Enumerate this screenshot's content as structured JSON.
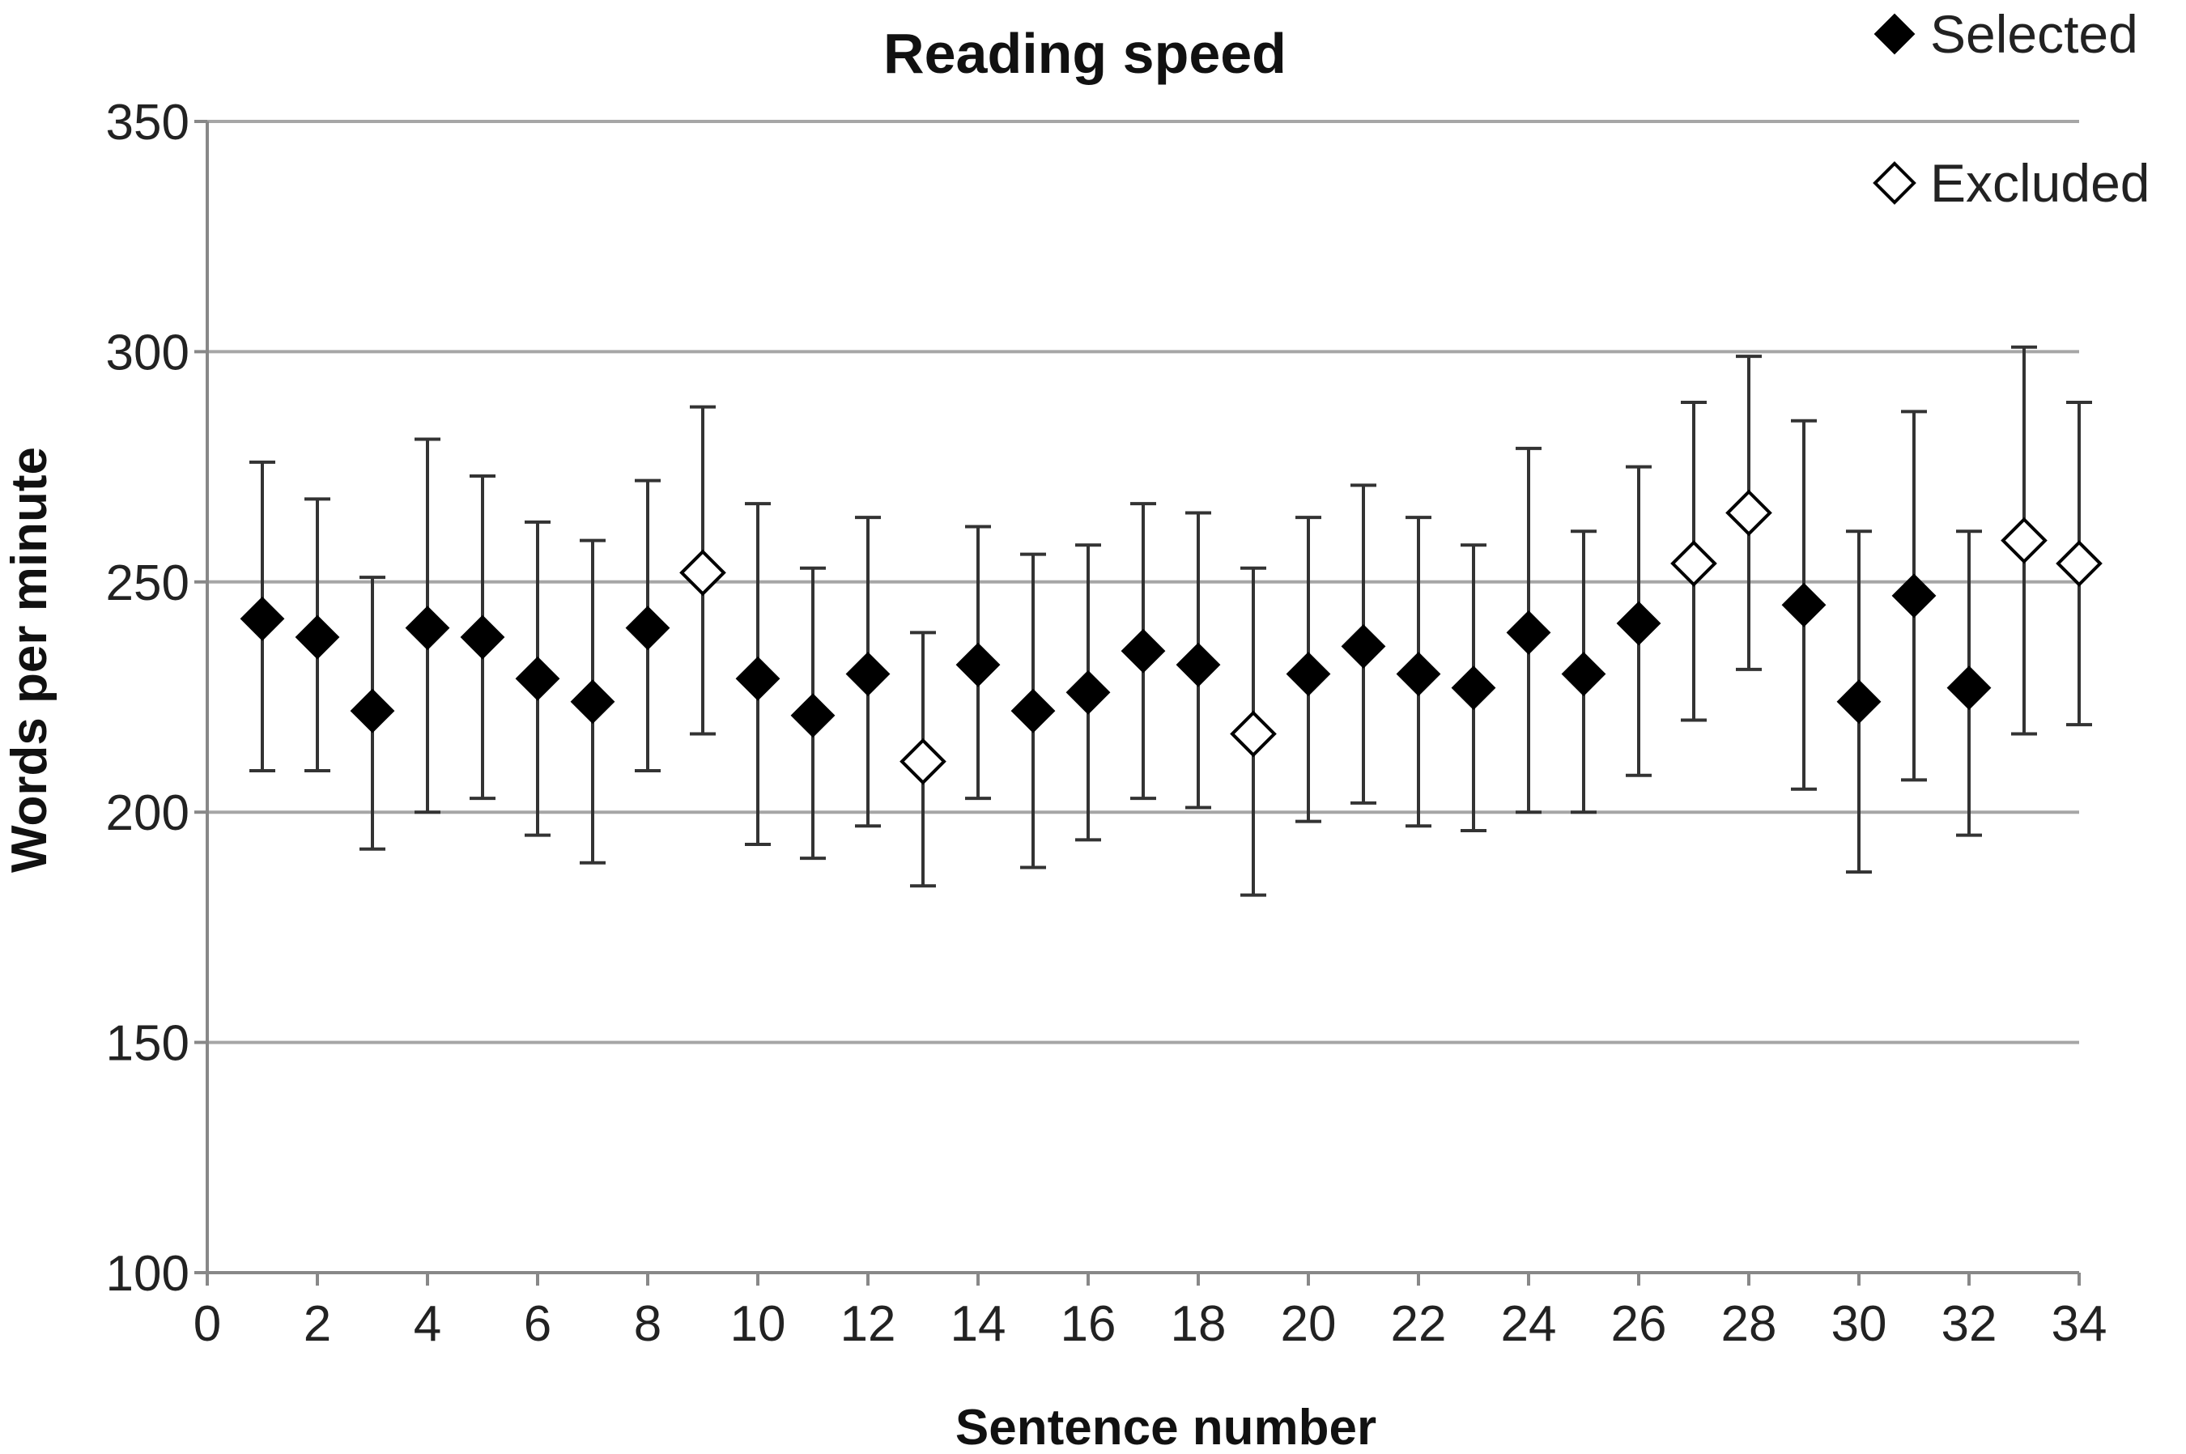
{
  "chart_data": {
    "type": "scatter",
    "title": "Reading speed",
    "xlabel": "Sentence number",
    "ylabel": "Words per minute",
    "xlim": [
      0,
      34
    ],
    "ylim": [
      100,
      350
    ],
    "xticks": [
      0,
      2,
      4,
      6,
      8,
      10,
      12,
      14,
      16,
      18,
      20,
      22,
      24,
      26,
      28,
      30,
      32,
      34
    ],
    "yticks": [
      100,
      150,
      200,
      250,
      300,
      350
    ],
    "grid": "horizontal",
    "legend_position": "top-right",
    "series": [
      {
        "name": "Selected",
        "marker": "filled-diamond",
        "color": "#000000",
        "points": [
          {
            "x": 1,
            "y": 242,
            "low": 209,
            "high": 276
          },
          {
            "x": 2,
            "y": 238,
            "low": 209,
            "high": 268
          },
          {
            "x": 3,
            "y": 222,
            "low": 192,
            "high": 251
          },
          {
            "x": 4,
            "y": 240,
            "low": 200,
            "high": 281
          },
          {
            "x": 5,
            "y": 238,
            "low": 203,
            "high": 273
          },
          {
            "x": 6,
            "y": 229,
            "low": 195,
            "high": 263
          },
          {
            "x": 7,
            "y": 224,
            "low": 189,
            "high": 259
          },
          {
            "x": 8,
            "y": 240,
            "low": 209,
            "high": 272
          },
          {
            "x": 10,
            "y": 229,
            "low": 193,
            "high": 267
          },
          {
            "x": 11,
            "y": 221,
            "low": 190,
            "high": 253
          },
          {
            "x": 12,
            "y": 230,
            "low": 197,
            "high": 264
          },
          {
            "x": 14,
            "y": 232,
            "low": 203,
            "high": 262
          },
          {
            "x": 15,
            "y": 222,
            "low": 188,
            "high": 256
          },
          {
            "x": 16,
            "y": 226,
            "low": 194,
            "high": 258
          },
          {
            "x": 17,
            "y": 235,
            "low": 203,
            "high": 267
          },
          {
            "x": 18,
            "y": 232,
            "low": 201,
            "high": 265
          },
          {
            "x": 20,
            "y": 230,
            "low": 198,
            "high": 264
          },
          {
            "x": 21,
            "y": 236,
            "low": 202,
            "high": 271
          },
          {
            "x": 22,
            "y": 230,
            "low": 197,
            "high": 264
          },
          {
            "x": 23,
            "y": 227,
            "low": 196,
            "high": 258
          },
          {
            "x": 24,
            "y": 239,
            "low": 200,
            "high": 279
          },
          {
            "x": 25,
            "y": 230,
            "low": 200,
            "high": 261
          },
          {
            "x": 26,
            "y": 241,
            "low": 208,
            "high": 275
          },
          {
            "x": 29,
            "y": 245,
            "low": 205,
            "high": 285
          },
          {
            "x": 30,
            "y": 224,
            "low": 187,
            "high": 261
          },
          {
            "x": 31,
            "y": 247,
            "low": 207,
            "high": 287
          },
          {
            "x": 32,
            "y": 227,
            "low": 195,
            "high": 261
          }
        ]
      },
      {
        "name": "Excluded",
        "marker": "hollow-diamond",
        "color": "#ffffff",
        "points": [
          {
            "x": 9,
            "y": 252,
            "low": 217,
            "high": 288
          },
          {
            "x": 13,
            "y": 211,
            "low": 184,
            "high": 239
          },
          {
            "x": 19,
            "y": 217,
            "low": 182,
            "high": 253
          },
          {
            "x": 27,
            "y": 254,
            "low": 220,
            "high": 289
          },
          {
            "x": 28,
            "y": 265,
            "low": 231,
            "high": 299
          },
          {
            "x": 33,
            "y": 259,
            "low": 217,
            "high": 301
          },
          {
            "x": 34,
            "y": 254,
            "low": 219,
            "high": 289
          }
        ]
      }
    ]
  }
}
